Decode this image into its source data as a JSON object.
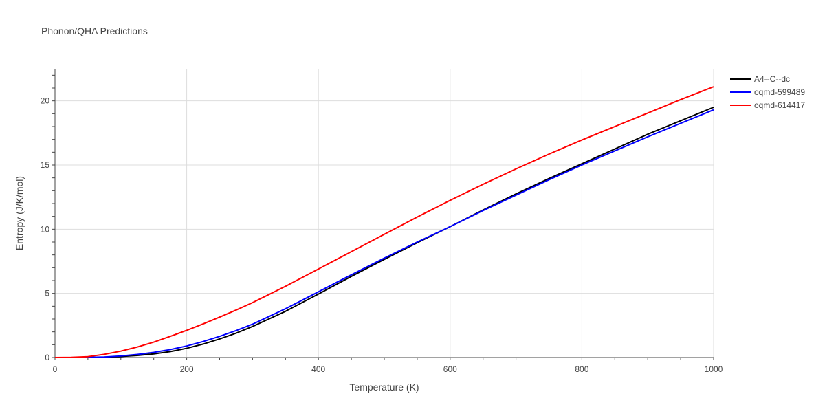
{
  "chart_data": {
    "type": "line",
    "title": "Phonon/QHA Predictions",
    "xlabel": "Temperature (K)",
    "ylabel": "Entropy (J/K/mol)",
    "xlim": [
      0,
      1000
    ],
    "ylim": [
      0,
      22.5
    ],
    "xticks": [
      0,
      200,
      400,
      600,
      800,
      1000
    ],
    "yticks": [
      0,
      5,
      10,
      15,
      20
    ],
    "grid": true,
    "legend_position": "top-right",
    "series": [
      {
        "name": "A4--C--dc",
        "color": "#000000",
        "x": [
          0,
          25,
          50,
          75,
          100,
          125,
          150,
          175,
          200,
          225,
          250,
          275,
          300,
          350,
          400,
          450,
          500,
          550,
          600,
          650,
          700,
          750,
          800,
          850,
          900,
          950,
          1000
        ],
        "y": [
          0,
          0,
          0.01,
          0.03,
          0.08,
          0.16,
          0.28,
          0.46,
          0.72,
          1.05,
          1.45,
          1.9,
          2.42,
          3.6,
          4.95,
          6.32,
          7.65,
          8.95,
          10.2,
          11.5,
          12.75,
          13.95,
          15.1,
          16.25,
          17.4,
          18.45,
          19.5
        ]
      },
      {
        "name": "oqmd-599489",
        "color": "#0000ff",
        "x": [
          0,
          25,
          50,
          75,
          100,
          125,
          150,
          175,
          200,
          225,
          250,
          275,
          300,
          350,
          400,
          450,
          500,
          550,
          600,
          650,
          700,
          750,
          800,
          850,
          900,
          950,
          1000
        ],
        "y": [
          0,
          0,
          0.01,
          0.04,
          0.12,
          0.24,
          0.4,
          0.62,
          0.9,
          1.25,
          1.65,
          2.1,
          2.6,
          3.8,
          5.12,
          6.45,
          7.75,
          9.0,
          10.2,
          11.45,
          12.65,
          13.85,
          15.0,
          16.1,
          17.2,
          18.25,
          19.3
        ]
      },
      {
        "name": "oqmd-614417",
        "color": "#ff0000",
        "x": [
          0,
          25,
          50,
          75,
          100,
          125,
          150,
          175,
          200,
          225,
          250,
          275,
          300,
          350,
          400,
          450,
          500,
          550,
          600,
          650,
          700,
          750,
          800,
          850,
          900,
          950,
          1000
        ],
        "y": [
          0,
          0.01,
          0.07,
          0.25,
          0.5,
          0.82,
          1.2,
          1.65,
          2.12,
          2.62,
          3.15,
          3.7,
          4.28,
          5.55,
          6.9,
          8.25,
          9.6,
          10.95,
          12.25,
          13.5,
          14.7,
          15.85,
          16.95,
          18.0,
          19.05,
          20.1,
          21.1
        ]
      }
    ]
  }
}
